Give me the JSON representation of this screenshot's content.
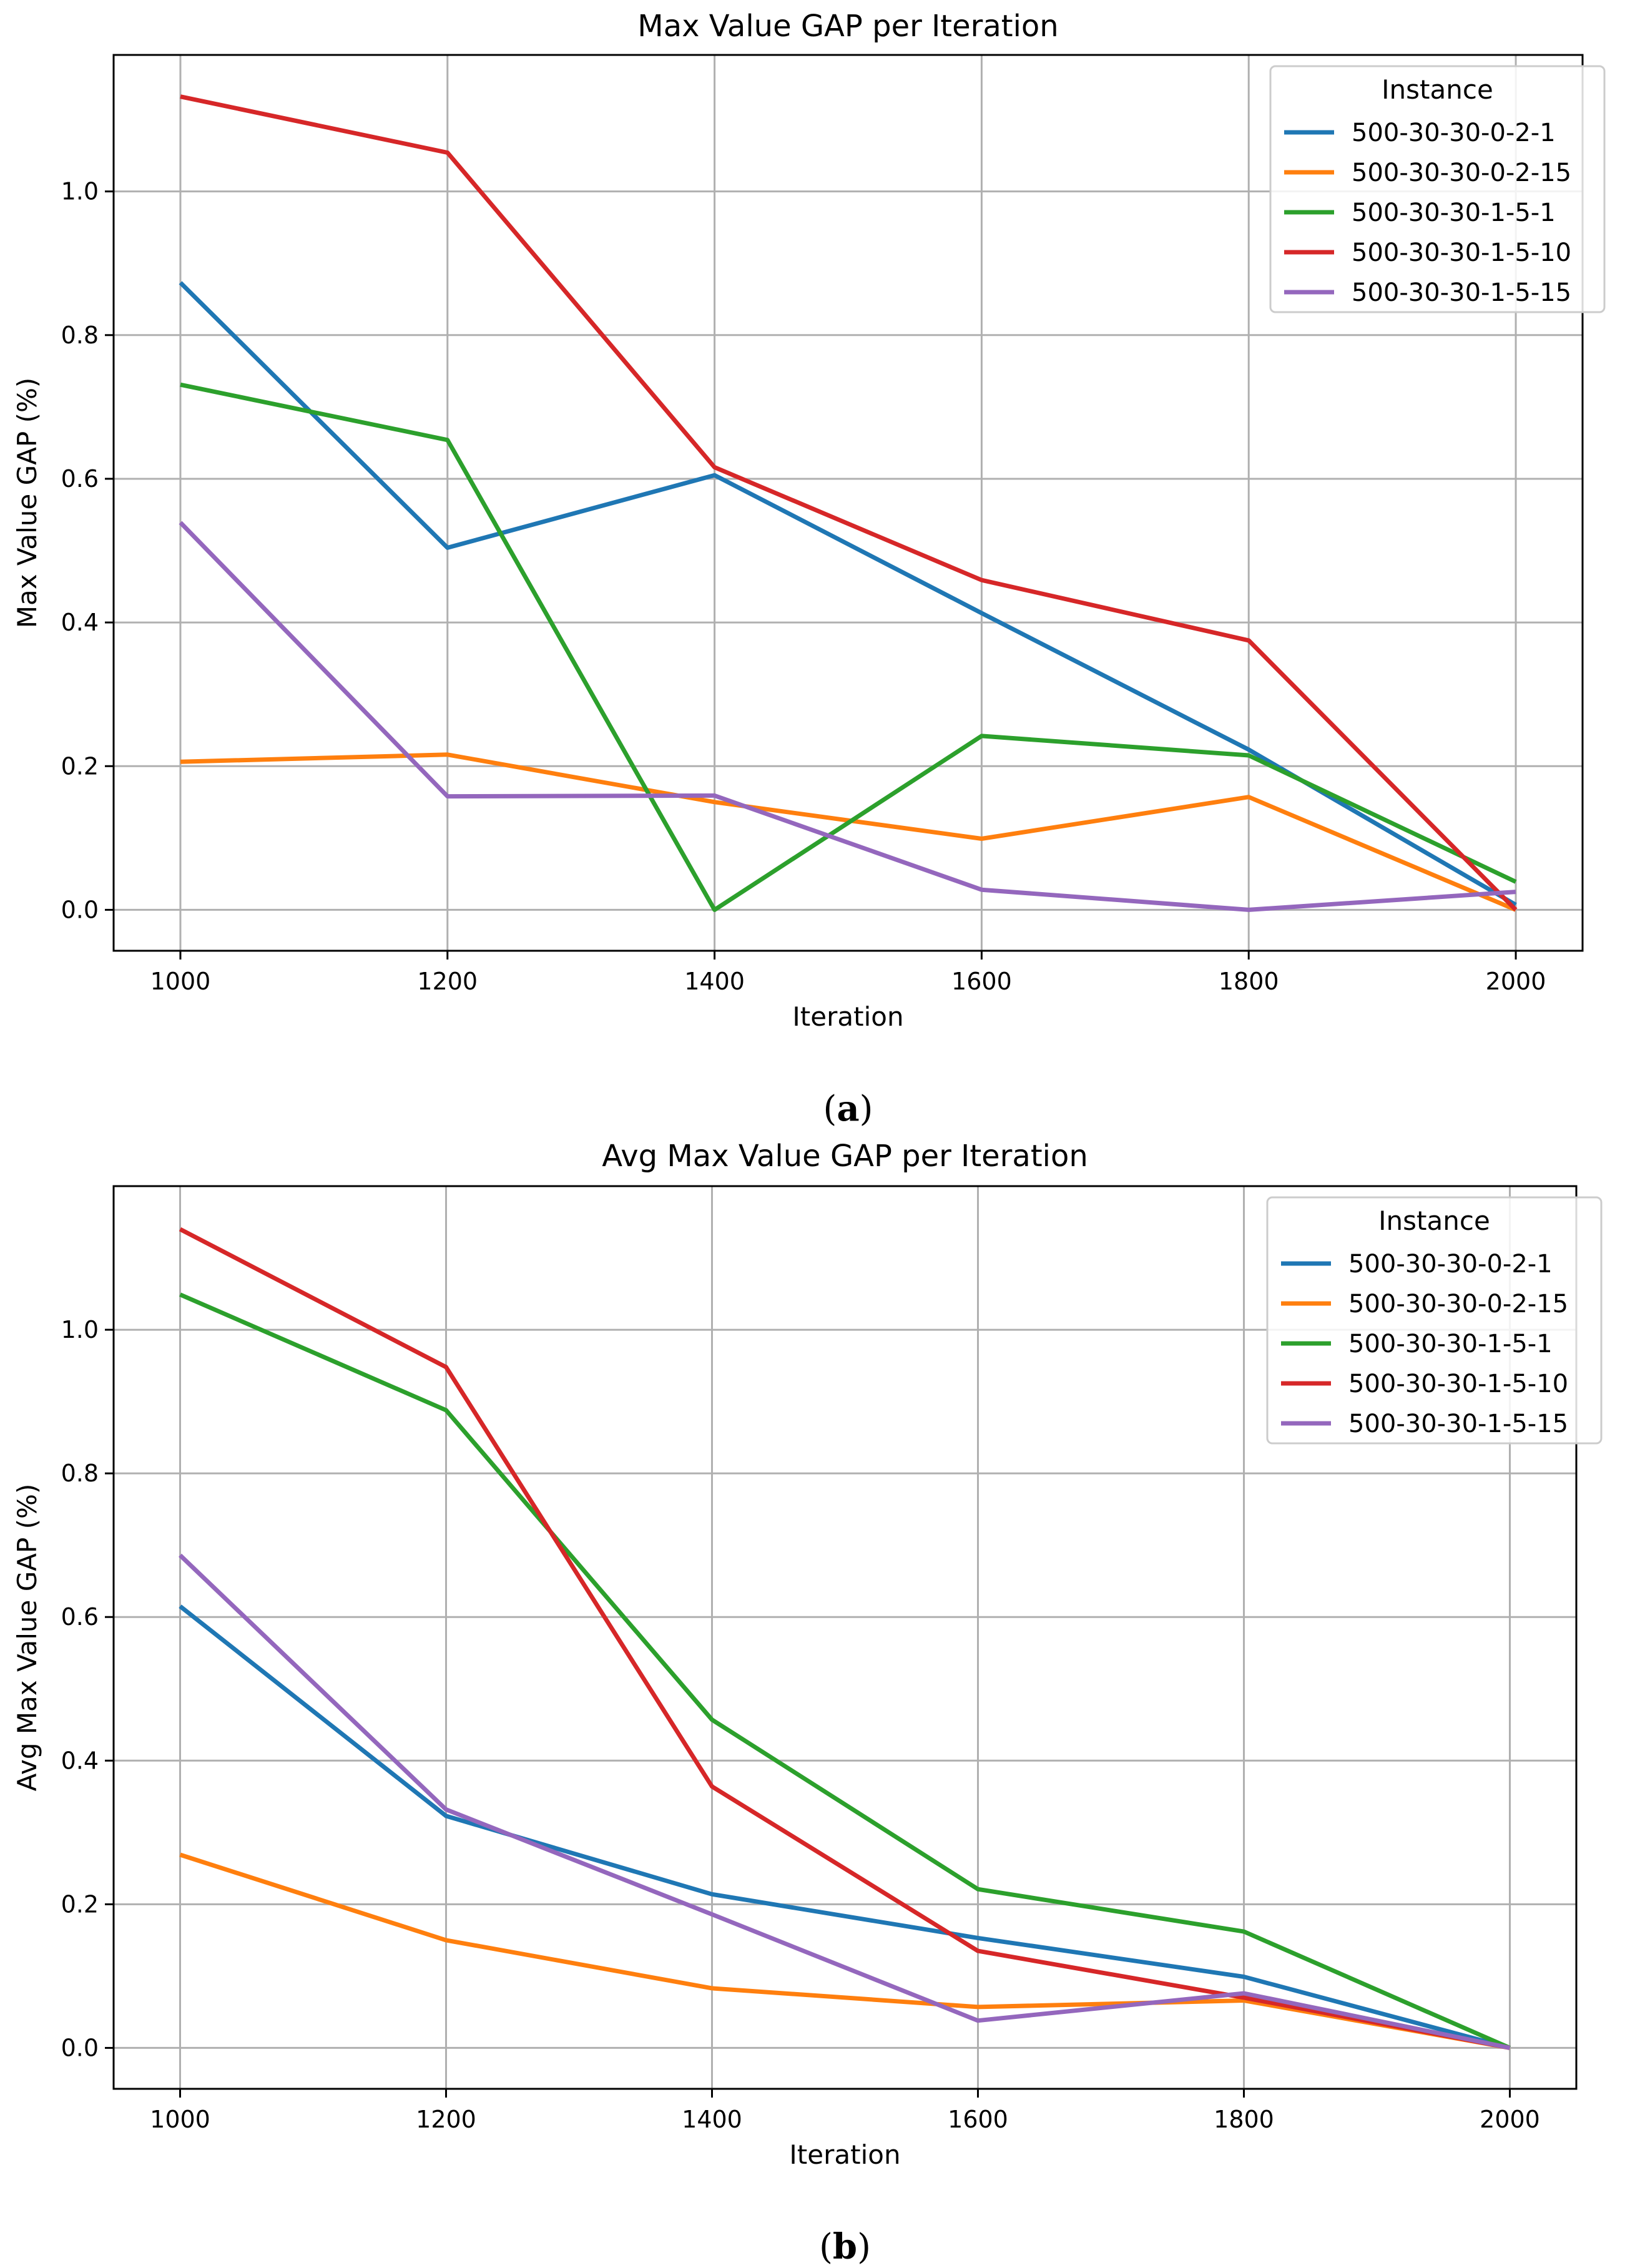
{
  "chart_data": [
    {
      "type": "line",
      "title": "Max Value GAP per Iteration",
      "xlabel": "Iteration",
      "ylabel": "Max Value GAP (%)",
      "x": [
        1000,
        1200,
        1400,
        1600,
        1800,
        2000
      ],
      "x_ticks": [
        "1000",
        "1200",
        "1400",
        "1600",
        "1800",
        "2000"
      ],
      "y_ticks": [
        "0.0",
        "0.2",
        "0.4",
        "0.6",
        "0.8",
        "1.0"
      ],
      "xlim": [
        950,
        2050
      ],
      "ylim": [
        -0.057,
        1.19
      ],
      "grid": true,
      "legend": {
        "title": "Instance",
        "position": "top-right"
      },
      "caption": {
        "open": "(",
        "letter": "a",
        "close": ")"
      },
      "series": [
        {
          "name": "500-30-30-0-2-1",
          "color": "#1f77b4",
          "values": [
            0.873,
            0.504,
            0.605,
            0.413,
            0.223,
            0.007
          ]
        },
        {
          "name": "500-30-30-0-2-15",
          "color": "#ff7f0e",
          "values": [
            0.206,
            0.216,
            0.15,
            0.099,
            0.157,
            0.0
          ]
        },
        {
          "name": "500-30-30-1-5-1",
          "color": "#2ca02c",
          "values": [
            0.731,
            0.654,
            0.0,
            0.242,
            0.215,
            0.039
          ]
        },
        {
          "name": "500-30-30-1-5-10",
          "color": "#d62728",
          "values": [
            1.132,
            1.054,
            0.616,
            0.459,
            0.375,
            0.0
          ]
        },
        {
          "name": "500-30-30-1-5-15",
          "color": "#9467bd",
          "values": [
            0.539,
            0.158,
            0.159,
            0.028,
            0.0,
            0.025
          ]
        }
      ]
    },
    {
      "type": "line",
      "title": "Avg Max Value GAP per Iteration",
      "xlabel": "Iteration",
      "ylabel": "Avg Max Value GAP (%)",
      "x": [
        1000,
        1200,
        1400,
        1600,
        1800,
        2000
      ],
      "x_ticks": [
        "1000",
        "1200",
        "1400",
        "1600",
        "1800",
        "2000"
      ],
      "y_ticks": [
        "0.0",
        "0.2",
        "0.4",
        "0.6",
        "0.8",
        "1.0"
      ],
      "xlim": [
        950,
        2050
      ],
      "ylim": [
        -0.057,
        1.2
      ],
      "grid": true,
      "legend": {
        "title": "Instance",
        "position": "top-right"
      },
      "caption": {
        "open": "(",
        "letter": "b",
        "close": ")"
      },
      "series": [
        {
          "name": "500-30-30-0-2-1",
          "color": "#1f77b4",
          "values": [
            0.615,
            0.323,
            0.214,
            0.153,
            0.099,
            0.0
          ]
        },
        {
          "name": "500-30-30-0-2-15",
          "color": "#ff7f0e",
          "values": [
            0.269,
            0.15,
            0.083,
            0.057,
            0.066,
            0.0
          ]
        },
        {
          "name": "500-30-30-1-5-1",
          "color": "#2ca02c",
          "values": [
            1.049,
            0.888,
            0.457,
            0.221,
            0.162,
            0.0
          ]
        },
        {
          "name": "500-30-30-1-5-10",
          "color": "#d62728",
          "values": [
            1.14,
            0.948,
            0.364,
            0.135,
            0.07,
            0.0
          ]
        },
        {
          "name": "500-30-30-1-5-15",
          "color": "#9467bd",
          "values": [
            0.686,
            0.332,
            0.186,
            0.038,
            0.076,
            0.0
          ]
        }
      ]
    }
  ]
}
